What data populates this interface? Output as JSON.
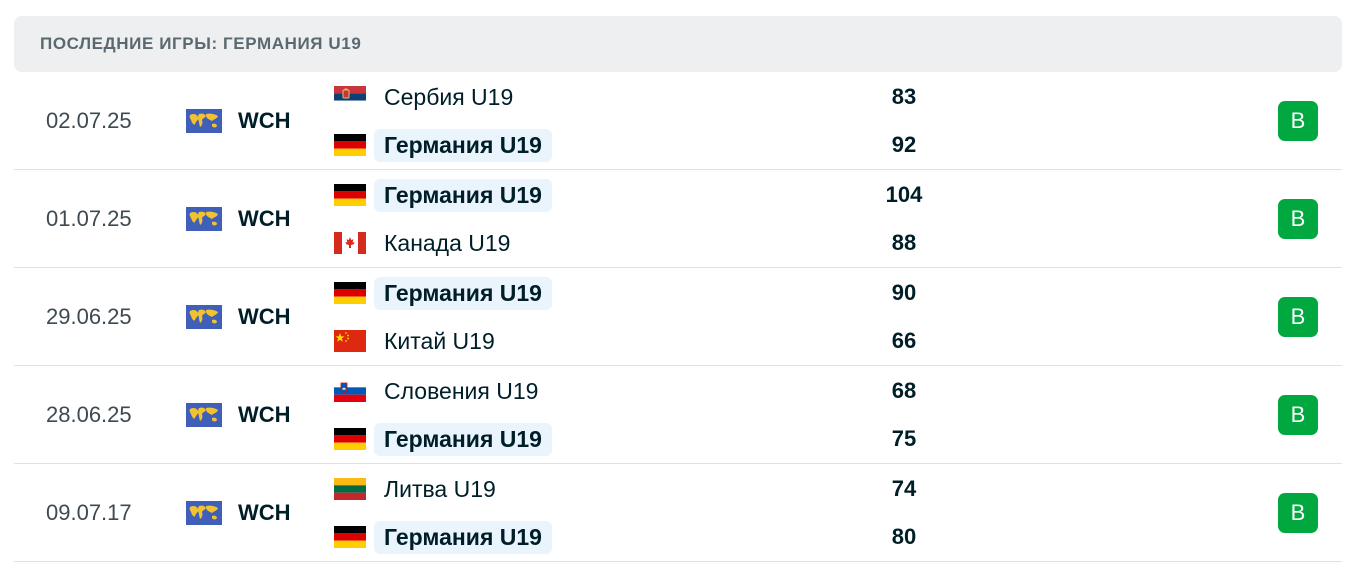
{
  "header": {
    "title": "ПОСЛЕДНИЕ ИГРЫ: ГЕРМАНИЯ U19"
  },
  "colors": {
    "win": "#00a83f",
    "highlight": "#eaf4fd",
    "header_bg": "#eeeff0"
  },
  "matches": [
    {
      "date": "02.07.25",
      "league": "WCH",
      "league_icon": "world-map-icon",
      "team1": {
        "name": "Сербия U19",
        "flag": "flag-serbia-icon",
        "score": "83"
      },
      "team2": {
        "name": "Германия U19",
        "flag": "flag-germany-icon",
        "score": "92"
      },
      "result": "В"
    },
    {
      "date": "01.07.25",
      "league": "WCH",
      "league_icon": "world-map-icon",
      "team1": {
        "name": "Германия U19",
        "flag": "flag-germany-icon",
        "score": "104"
      },
      "team2": {
        "name": "Канада U19",
        "flag": "flag-canada-icon",
        "score": "88"
      },
      "result": "В"
    },
    {
      "date": "29.06.25",
      "league": "WCH",
      "league_icon": "world-map-icon",
      "team1": {
        "name": "Германия U19",
        "flag": "flag-germany-icon",
        "score": "90"
      },
      "team2": {
        "name": "Китай U19",
        "flag": "flag-china-icon",
        "score": "66"
      },
      "result": "В"
    },
    {
      "date": "28.06.25",
      "league": "WCH",
      "league_icon": "world-map-icon",
      "team1": {
        "name": "Словения U19",
        "flag": "flag-slovenia-icon",
        "score": "68"
      },
      "team2": {
        "name": "Германия U19",
        "flag": "flag-germany-icon",
        "score": "75"
      },
      "result": "В"
    },
    {
      "date": "09.07.17",
      "league": "WCH",
      "league_icon": "world-map-icon",
      "team1": {
        "name": "Литва U19",
        "flag": "flag-lithuania-icon",
        "score": "74"
      },
      "team2": {
        "name": "Германия U19",
        "flag": "flag-germany-icon",
        "score": "80"
      },
      "result": "В"
    }
  ]
}
